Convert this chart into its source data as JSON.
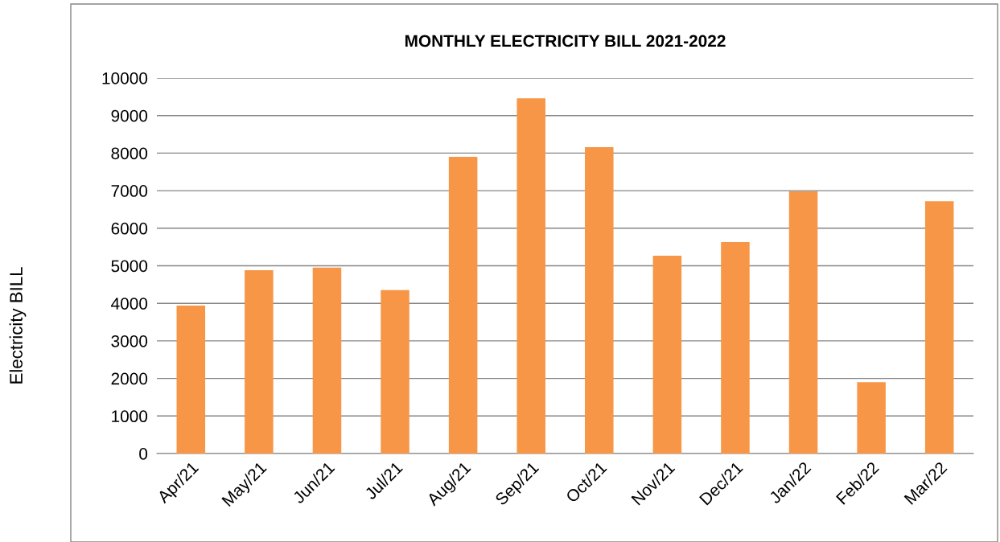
{
  "chart_data": {
    "type": "bar",
    "title": "MONTHLY ELECTRICITY BILL 2021-2022",
    "ylabel": "Electricity BILL",
    "categories": [
      "Apr/21",
      "May/21",
      "Jun/21",
      "Jul/21",
      "Aug/21",
      "Sep/21",
      "Oct/21",
      "Nov/21",
      "Dec/21",
      "Jan/22",
      "Feb/22",
      "Mar/22"
    ],
    "values": [
      3940,
      4880,
      4950,
      4350,
      7900,
      9460,
      8160,
      5270,
      5630,
      6980,
      1900,
      6720
    ],
    "color": "#f79646",
    "ylim": [
      0,
      10000
    ],
    "yticks": [
      0,
      1000,
      2000,
      3000,
      4000,
      5000,
      6000,
      7000,
      8000,
      9000,
      10000
    ],
    "grid": "y",
    "legend": false
  }
}
